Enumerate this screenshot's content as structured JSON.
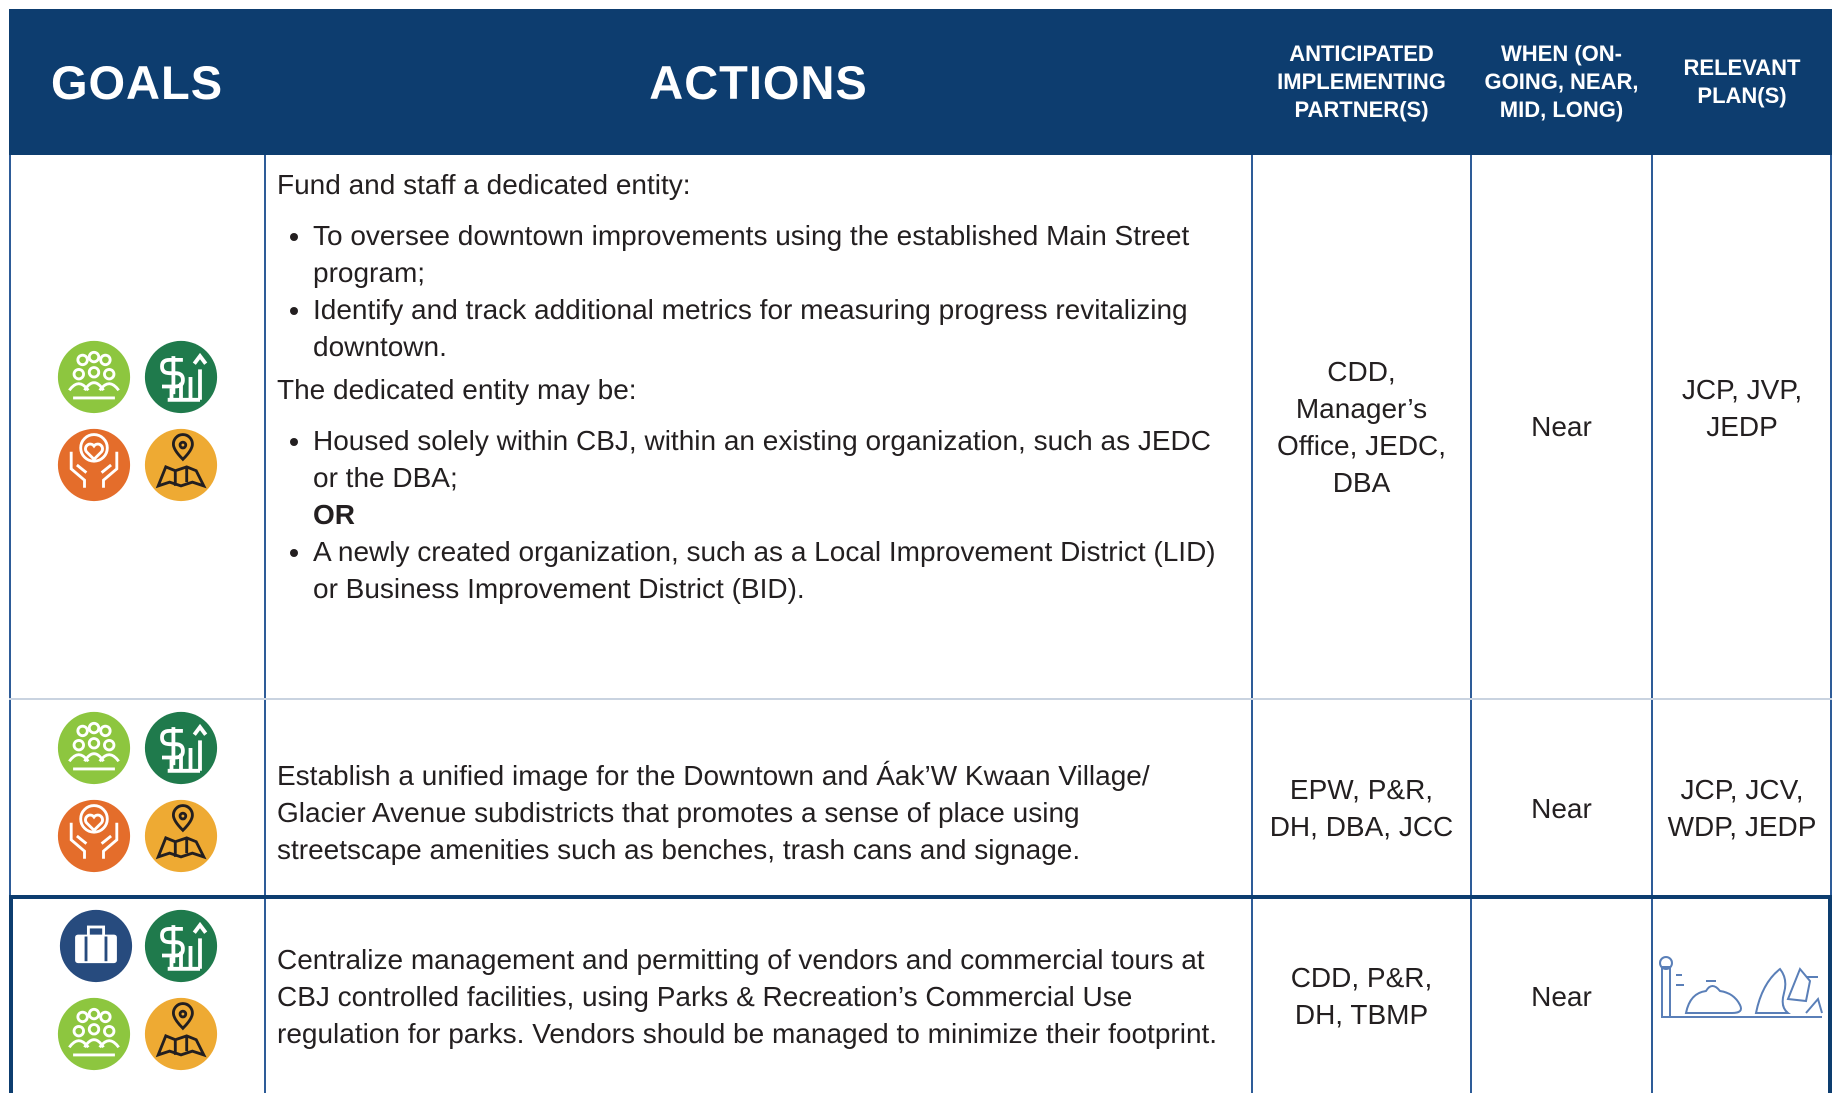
{
  "header": {
    "goals": "GOALS",
    "actions": "ACTIONS",
    "partners": "ANTICIPATED IMPLEMENTING PARTNER(S)",
    "when": "WHEN (ON-GOING, NEAR, MID, LONG)",
    "plans": "RELEVANT PLAN(S)"
  },
  "rows": [
    {
      "actions": {
        "intro": "Fund and staff a dedicated entity:",
        "intro_bullets": [
          "To oversee downtown improvements using the established Main Street program;",
          "Identify and track additional metrics for measuring progress revitalizing downtown."
        ],
        "second_intro": "The dedicated entity may be:",
        "option_a": "Housed solely within CBJ, within an existing organization, such as JEDC or the DBA;",
        "or": "OR",
        "option_b": "A newly created organization, such as a Local Improvement District (LID) or Business Improvement District (BID)."
      },
      "partners": "CDD, Manager’s Office, JEDC, DBA",
      "when": "Near",
      "plans": "JCP, JVP, JEDP"
    },
    {
      "actions": "Establish a unified image for  the Downtown and Áak’W Kwaan Village/ Glacier Avenue subdistricts that promotes a sense of place using streetscape amenities such as benches, trash cans and signage.",
      "partners": "EPW, P&R, DH, DBA, JCC",
      "when": "Near",
      "plans": "JCP, JCV, WDP, JEDP"
    },
    {
      "actions": "Centralize management and permitting of vendors and commercial tours at CBJ controlled facilities, using Parks & Recreation’s Commercial Use regulation for parks. Vendors should be managed to minimize their footprint.",
      "partners": "CDD, P&R, DH, TBMP",
      "when": "Near"
    }
  ]
}
